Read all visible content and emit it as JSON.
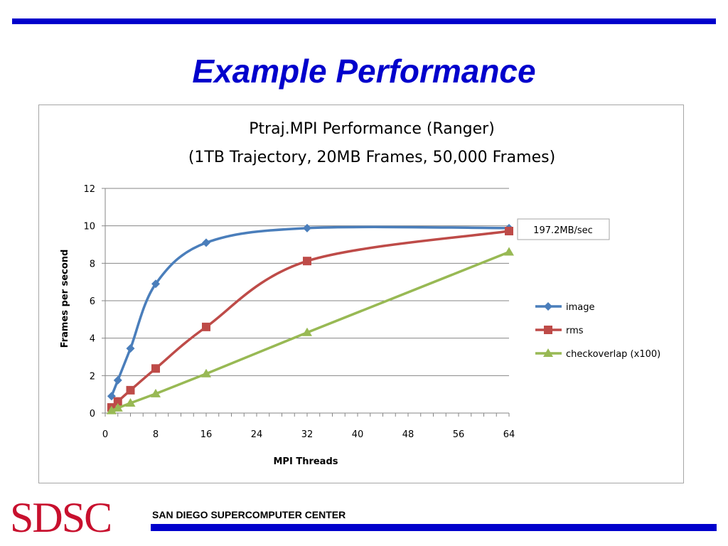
{
  "slide": {
    "title": "Example Performance",
    "footer_logo": "SDSC",
    "footer_text": "SAN DIEGO SUPERCOMPUTER CENTER"
  },
  "colors": {
    "accent_blue": "#0000cc",
    "logo_red": "#c8102e",
    "image": "#4a7ebb",
    "rms": "#be4b48",
    "checkoverlap": "#98b954"
  },
  "chart_data": {
    "type": "line",
    "title_line1": "Ptraj.MPI Performance (Ranger)",
    "title_line2": "(1TB Trajectory, 20MB Frames, 50,000 Frames)",
    "xlabel": "MPI Threads",
    "ylabel": "Frames per second",
    "xlim": [
      0,
      64
    ],
    "ylim": [
      0,
      12
    ],
    "xticks": [
      0,
      8,
      16,
      24,
      32,
      40,
      48,
      56,
      64
    ],
    "yticks": [
      0,
      2,
      4,
      6,
      8,
      10,
      12
    ],
    "grid": "horizontal",
    "legend_position": "right",
    "annotation": "197.2MB/sec",
    "series": [
      {
        "name": "image",
        "marker": "diamond",
        "x": [
          1,
          2,
          4,
          8,
          16,
          32,
          64
        ],
        "y": [
          0.9,
          1.75,
          3.45,
          6.9,
          9.1,
          9.88,
          9.88
        ]
      },
      {
        "name": "rms",
        "marker": "square",
        "x": [
          1,
          2,
          4,
          8,
          16,
          32,
          64
        ],
        "y": [
          0.3,
          0.62,
          1.22,
          2.38,
          4.6,
          8.12,
          9.72
        ]
      },
      {
        "name": "checkoverlap (x100)",
        "marker": "triangle",
        "x": [
          1,
          2,
          4,
          8,
          16,
          32,
          64
        ],
        "y": [
          0.13,
          0.27,
          0.53,
          1.03,
          2.1,
          4.3,
          8.6
        ]
      }
    ]
  }
}
